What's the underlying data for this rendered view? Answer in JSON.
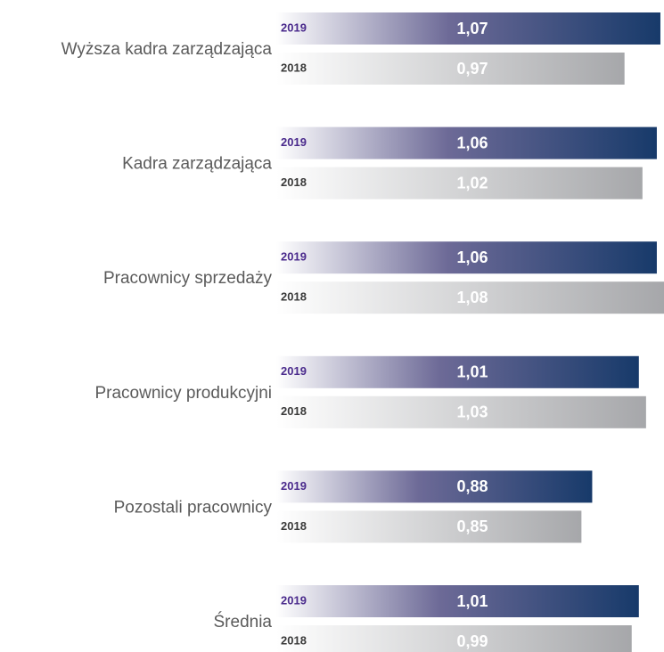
{
  "chart_data": {
    "type": "bar",
    "orientation": "horizontal",
    "categories": [
      "Wyższa kadra zarządzająca",
      "Kadra zarządzająca",
      "Pracownicy sprzedaży",
      "Pracownicy produkcyjni",
      "Pozostali pracownicy",
      "Średnia"
    ],
    "series": [
      {
        "name": "2019",
        "color": "#173a6a",
        "values": [
          1.07,
          1.06,
          1.06,
          1.01,
          0.88,
          1.01
        ],
        "value_labels": [
          "1,07",
          "1,06",
          "1,06",
          "1,01",
          "0,88",
          "1,01"
        ]
      },
      {
        "name": "2018",
        "color": "#a6a7aa",
        "values": [
          0.97,
          1.02,
          1.08,
          1.03,
          0.85,
          0.99
        ],
        "value_labels": [
          "0,97",
          "1,02",
          "1,08",
          "1,03",
          "0,85",
          "0,99"
        ]
      }
    ],
    "xlim": [
      0,
      1.08
    ]
  }
}
